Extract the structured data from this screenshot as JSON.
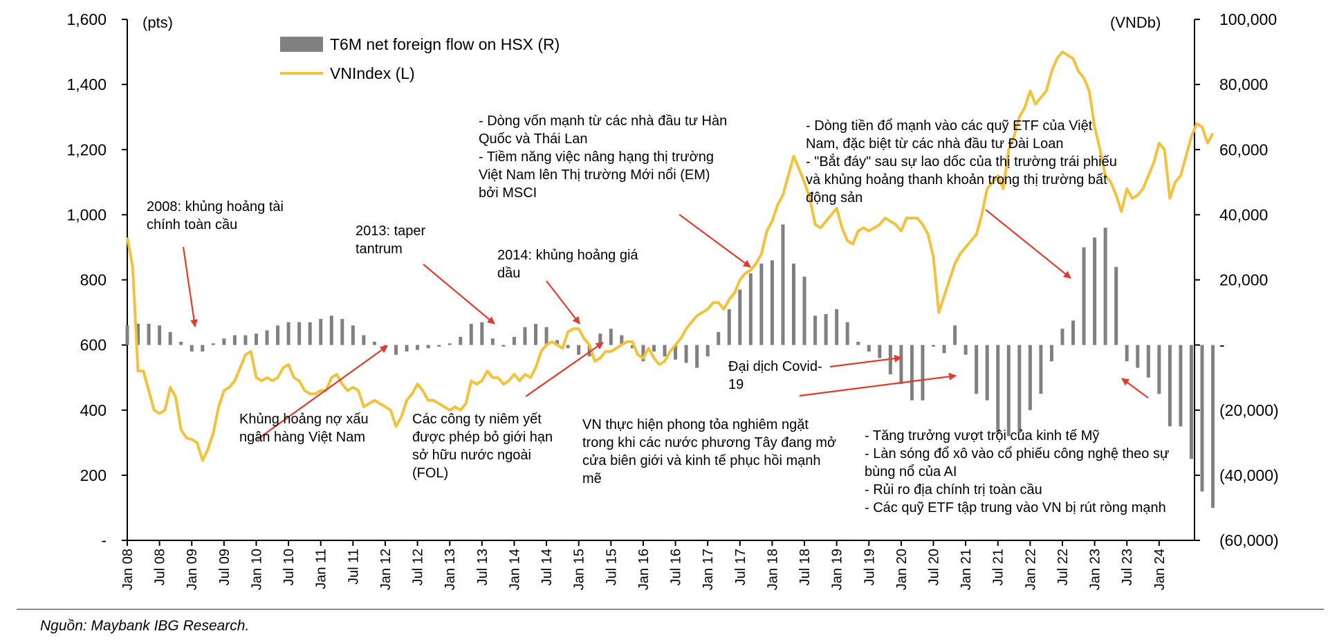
{
  "chart_data": {
    "type": "bar+line",
    "title": "",
    "left_axis": {
      "unit": "(pts)",
      "ylim": [
        0,
        1600
      ],
      "ticks": [
        0,
        200,
        400,
        600,
        800,
        1000,
        1200,
        1400,
        1600
      ],
      "tick_labels": [
        "-",
        "200",
        "400",
        "600",
        "800",
        "1,000",
        "1,200",
        "1,400",
        "1,600"
      ]
    },
    "right_axis": {
      "unit": "(VNDb)",
      "ylim": [
        -60000,
        100000
      ],
      "ticks": [
        -60000,
        -40000,
        -20000,
        0,
        20000,
        40000,
        60000,
        80000,
        100000
      ],
      "tick_labels": [
        "(60,000)",
        "(40,000)",
        "(20,000)",
        "-",
        "20,000",
        "40,000",
        "60,000",
        "80,000",
        "100,000"
      ]
    },
    "x_tick_labels": [
      "Jan 08",
      "Jul 08",
      "Jan 09",
      "Jul 09",
      "Jan 10",
      "Jul 10",
      "Jan 11",
      "Jul 11",
      "Jan 12",
      "Jul 12",
      "Jan 13",
      "Jul 13",
      "Jan 14",
      "Jul 14",
      "Jan 15",
      "Jul 15",
      "Jan 16",
      "Jul 16",
      "Jan 17",
      "Jul 17",
      "Jan 18",
      "Jul 18",
      "Jan 19",
      "Jul 19",
      "Jan 20",
      "Jul 20",
      "Jan 21",
      "Jul 21",
      "Jan 22",
      "Jul 22",
      "Jan 23",
      "Jul 23",
      "Jan 24"
    ],
    "legend": [
      "T6M net foreign flow on HSX (R)",
      "VNIndex (L)"
    ],
    "legend_placement": "top-left",
    "colors": {
      "bars": "#808080",
      "line": "#f3c23a",
      "arrow": "#e23a2a"
    },
    "series": [
      {
        "name": "T6M net foreign flow on HSX (R)",
        "type": "bar",
        "axis": "right",
        "step_months": 2,
        "start": "Jan 08",
        "values": [
          6000,
          6500,
          6500,
          6000,
          4000,
          1000,
          -2000,
          -2000,
          500,
          2000,
          3000,
          3000,
          3500,
          4500,
          6000,
          7000,
          7000,
          7000,
          8000,
          9000,
          8000,
          6000,
          3000,
          1000,
          -500,
          -3000,
          -2000,
          -1500,
          -1000,
          -500,
          500,
          2500,
          6500,
          7000,
          2000,
          -500,
          2500,
          5500,
          6500,
          5500,
          1500,
          -1000,
          -3000,
          -3500,
          3500,
          5000,
          3000,
          -1000,
          -5000,
          -2000,
          -3500,
          -4500,
          -5500,
          -7000,
          -3500,
          4000,
          11000,
          17000,
          22000,
          25000,
          26000,
          37000,
          25000,
          21000,
          9000,
          9500,
          11000,
          7000,
          1000,
          -2000,
          -4000,
          -9000,
          -12000,
          -17000,
          -17000,
          -500,
          -2500,
          6000,
          -3000,
          -15000,
          -17000,
          -27000,
          -28000,
          -27000,
          -20000,
          -15000,
          -5000,
          5000,
          7500,
          30000,
          33000,
          36000,
          24000,
          -5000,
          -7000,
          -10000,
          -15000,
          -25000,
          -25000,
          -35000,
          -45000,
          -50000
        ]
      },
      {
        "name": "VNIndex (L)",
        "type": "line",
        "axis": "left",
        "step_months": 1,
        "start": "Jan 08",
        "values": [
          930,
          840,
          520,
          520,
          460,
          400,
          390,
          400,
          470,
          440,
          340,
          315,
          310,
          300,
          245,
          280,
          330,
          410,
          460,
          470,
          490,
          530,
          570,
          580,
          500,
          490,
          500,
          490,
          500,
          530,
          540,
          500,
          490,
          460,
          450,
          450,
          460,
          460,
          500,
          510,
          480,
          460,
          470,
          460,
          410,
          420,
          430,
          420,
          410,
          400,
          350,
          380,
          430,
          450,
          480,
          460,
          430,
          430,
          420,
          410,
          400,
          410,
          400,
          420,
          490,
          480,
          490,
          520,
          500,
          500,
          480,
          490,
          510,
          490,
          510,
          500,
          530,
          580,
          600,
          610,
          600,
          590,
          640,
          650,
          650,
          620,
          600,
          550,
          560,
          580,
          580,
          590,
          600,
          610,
          610,
          570,
          560,
          590,
          560,
          540,
          550,
          580,
          600,
          620,
          650,
          670,
          690,
          700,
          710,
          730,
          730,
          710,
          740,
          760,
          800,
          820,
          830,
          850,
          880,
          950,
          980,
          1030,
          1060,
          1120,
          1180,
          1140,
          1100,
          1050,
          970,
          960,
          980,
          1000,
          1020,
          960,
          920,
          910,
          950,
          960,
          950,
          960,
          970,
          990,
          980,
          970,
          950,
          990,
          990,
          990,
          970,
          940,
          870,
          700,
          750,
          800,
          850,
          880,
          900,
          920,
          940,
          1000,
          1080,
          1100,
          1120,
          1080,
          1200,
          1240,
          1300,
          1330,
          1380,
          1340,
          1360,
          1380,
          1440,
          1480,
          1500,
          1490,
          1480,
          1440,
          1420,
          1380,
          1270,
          1200,
          1120,
          1100,
          1060,
          1010,
          1080,
          1050,
          1060,
          1080,
          1120,
          1160,
          1220,
          1200,
          1050,
          1100,
          1120,
          1180,
          1240,
          1280,
          1270,
          1220,
          1250
        ]
      }
    ],
    "annotations": [
      {
        "id": "gfc",
        "lines": [
          "2008: khủng hoảng tài",
          "chính toàn cầu"
        ]
      },
      {
        "id": "bad-debt",
        "lines": [
          "Khủng hoảng nợ xấu",
          "ngân hàng Việt Nam"
        ]
      },
      {
        "id": "taper",
        "lines": [
          "2013: taper",
          "tantrum"
        ]
      },
      {
        "id": "oil",
        "lines": [
          "2014: khủng hoảng giá",
          "dầu"
        ]
      },
      {
        "id": "fol",
        "lines": [
          "Các công ty niêm yết",
          "được phép bỏ giới hạn",
          "sở hữu nước ngoài",
          "(FOL)"
        ]
      },
      {
        "id": "korea",
        "lines": [
          "- Dòng vốn mạnh từ các nhà đầu tư Hàn",
          "Quốc và Thái Lan",
          "- Tiềm năng việc nâng hạng thị trường",
          "Việt Nam lên Thị trường Mới nổi (EM)",
          "bởi MSCI"
        ]
      },
      {
        "id": "covid",
        "lines": [
          "Đại dịch Covid-",
          "19"
        ]
      },
      {
        "id": "lockdown",
        "lines": [
          "VN thực hiện phong tỏa nghiêm ngặt",
          "trong khi các nước phương Tây đang mở",
          "cửa biên giới và kinh tế phục hồi mạnh",
          "mẽ"
        ]
      },
      {
        "id": "etf",
        "lines": [
          "- Dòng tiền đổ mạnh vào các quỹ ETF của Việt",
          "Nam, đặc biệt từ các nhà đầu tư Đài Loan",
          "- \"Bắt đáy\" sau sự lao dốc của thị trường trái phiếu",
          "và khủng hoảng thanh khoản trong thị trường bất",
          "động sản"
        ]
      },
      {
        "id": "us",
        "lines": [
          "- Tăng trưởng vượt trội của kinh tế Mỹ",
          "- Làn sóng đổ xô vào cổ phiếu công nghệ theo sự",
          "bùng nổ của AI",
          "- Rủi ro địa chính trị toàn cầu",
          "- Các quỹ ETF tập trung vào VN bị rút ròng mạnh"
        ]
      }
    ]
  },
  "source": "Nguồn: Maybank IBG Research."
}
